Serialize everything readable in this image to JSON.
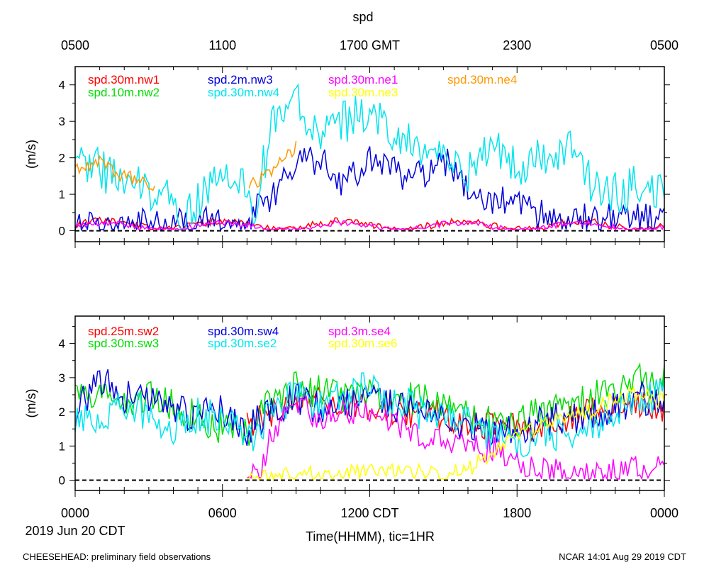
{
  "title": "spd",
  "gmt_ticks": [
    "0500",
    "1100",
    "1700 GMT",
    "2300",
    "0500"
  ],
  "cdt_ticks": [
    "0000",
    "0600",
    "1200 CDT",
    "1800",
    "0000"
  ],
  "date_label": "2019 Jun 20 CDT",
  "xlabel": "Time(HHMM), tic=1HR",
  "footer_left": "CHEESEHEAD: preliminary field observations",
  "footer_right": "NCAR 14:01 Aug 29 2019 CDT",
  "chart_data": [
    {
      "type": "line",
      "panel": "top",
      "ylabel": "(m/s)",
      "ylim": [
        -0.3,
        4.5
      ],
      "yticks": [
        "0",
        "1",
        "2",
        "3",
        "4"
      ],
      "xlim_hours_cdt": [
        0,
        24
      ],
      "zero_line": "dashed",
      "series": [
        {
          "name": "spd.30m.nw1",
          "color": "#ff0000",
          "start": 0,
          "end": 24,
          "mean": 0.15,
          "amp": 0.12,
          "noise": 0.1,
          "seed": 11
        },
        {
          "name": "spd.10m.nw2",
          "color": "#00dd00",
          "start": 0,
          "end": 0,
          "mean": 0,
          "amp": 0,
          "noise": 0,
          "seed": 12
        },
        {
          "name": "spd.2m.nw3",
          "color": "#0000dd",
          "start": 0,
          "end": 24,
          "profile": [
            [
              0,
              0.15
            ],
            [
              5,
              0.2
            ],
            [
              7,
              0.3
            ],
            [
              8,
              1.0
            ],
            [
              9,
              1.8
            ],
            [
              10,
              2.0
            ],
            [
              11,
              1.3
            ],
            [
              12,
              2.0
            ],
            [
              13,
              1.6
            ],
            [
              14,
              1.5
            ],
            [
              15,
              2.0
            ],
            [
              16,
              1.0
            ],
            [
              17,
              0.9
            ],
            [
              18,
              0.8
            ],
            [
              19,
              0.4
            ],
            [
              21,
              0.3
            ],
            [
              24,
              0.3
            ]
          ],
          "noise": 0.45,
          "seed": 13
        },
        {
          "name": "spd.30m.nw4",
          "color": "#00e5ee",
          "start": 0,
          "end": 24,
          "profile": [
            [
              0,
              2.1
            ],
            [
              1,
              1.7
            ],
            [
              2,
              1.3
            ],
            [
              3,
              1.2
            ],
            [
              4,
              0.8
            ],
            [
              4.5,
              0.3
            ],
            [
              5,
              0.8
            ],
            [
              6,
              1.8
            ],
            [
              7,
              1.0
            ],
            [
              7.3,
              0.6
            ],
            [
              8,
              2.8
            ],
            [
              9,
              3.6
            ],
            [
              10,
              2.6
            ],
            [
              11,
              3.0
            ],
            [
              12,
              3.3
            ],
            [
              13,
              2.6
            ],
            [
              14,
              2.2
            ],
            [
              15,
              2.0
            ],
            [
              16,
              1.6
            ],
            [
              17,
              2.2
            ],
            [
              18,
              1.8
            ],
            [
              19,
              2.1
            ],
            [
              20,
              2.3
            ],
            [
              21,
              1.4
            ],
            [
              22,
              1.0
            ],
            [
              23,
              1.3
            ],
            [
              24,
              0.9
            ]
          ],
          "noise": 0.6,
          "seed": 14
        },
        {
          "name": "spd.30m.ne1",
          "color": "#ff00ff",
          "start": 0,
          "end": 24,
          "mean": 0.12,
          "amp": 0.1,
          "noise": 0.08,
          "seed": 15
        },
        {
          "name": "spd.30m.ne3",
          "color": "#ffff00",
          "start": 0,
          "end": 0,
          "mean": 0,
          "amp": 0,
          "noise": 0,
          "seed": 16
        },
        {
          "name": "spd.30m.ne4",
          "color": "#ff9900",
          "start": 0,
          "end": 24,
          "gaps": [
            [
              3.3,
              7.0
            ],
            [
              9.0,
              24
            ]
          ],
          "profile": [
            [
              0,
              1.7
            ],
            [
              1,
              1.9
            ],
            [
              2,
              1.5
            ],
            [
              3,
              1.3
            ],
            [
              7,
              1.2
            ],
            [
              8,
              1.6
            ],
            [
              9,
              2.3
            ]
          ],
          "noise": 0.2,
          "seed": 17
        }
      ]
    },
    {
      "type": "line",
      "panel": "bottom",
      "ylabel": "(m/s)",
      "ylim": [
        -0.3,
        4.8
      ],
      "yticks": [
        "0",
        "1",
        "2",
        "3",
        "4"
      ],
      "xlim_hours_cdt": [
        0,
        24
      ],
      "zero_line": "dashed",
      "series": [
        {
          "name": "spd.25m.sw2",
          "color": "#ff0000",
          "start": 7.0,
          "end": 24,
          "profile": [
            [
              7,
              1.6
            ],
            [
              9,
              2.3
            ],
            [
              11,
              2.2
            ],
            [
              13,
              2.0
            ],
            [
              15,
              1.9
            ],
            [
              17,
              1.6
            ],
            [
              19,
              1.6
            ],
            [
              21,
              2.0
            ],
            [
              23,
              2.2
            ],
            [
              24,
              2.1
            ]
          ],
          "noise": 0.45,
          "seed": 21
        },
        {
          "name": "spd.30m.sw3",
          "color": "#00dd00",
          "start": 0,
          "end": 24,
          "profile": [
            [
              0,
              2.3
            ],
            [
              1,
              2.4
            ],
            [
              2,
              2.2
            ],
            [
              3,
              2.4
            ],
            [
              4,
              2.2
            ],
            [
              5,
              1.8
            ],
            [
              6,
              1.5
            ],
            [
              7,
              1.4
            ],
            [
              8,
              2.3
            ],
            [
              9,
              2.7
            ],
            [
              10,
              2.6
            ],
            [
              11,
              2.4
            ],
            [
              12,
              2.6
            ],
            [
              13,
              2.3
            ],
            [
              14,
              2.4
            ],
            [
              15,
              2.2
            ],
            [
              16,
              2.0
            ],
            [
              17,
              1.6
            ],
            [
              18,
              1.7
            ],
            [
              19,
              2.0
            ],
            [
              20,
              2.1
            ],
            [
              21,
              2.4
            ],
            [
              22,
              2.6
            ],
            [
              23,
              2.9
            ],
            [
              24,
              3.0
            ]
          ],
          "noise": 0.5,
          "seed": 22
        },
        {
          "name": "spd.30m.sw4",
          "color": "#0000dd",
          "start": 0,
          "end": 24,
          "profile": [
            [
              0,
              1.9
            ],
            [
              1,
              3.0
            ],
            [
              2,
              2.4
            ],
            [
              3,
              2.4
            ],
            [
              4,
              2.0
            ],
            [
              5,
              1.9
            ],
            [
              6,
              2.1
            ],
            [
              7,
              1.5
            ],
            [
              8,
              2.0
            ],
            [
              9,
              2.4
            ],
            [
              10,
              2.1
            ],
            [
              11,
              2.2
            ],
            [
              12,
              2.5
            ],
            [
              13,
              2.2
            ],
            [
              14,
              2.0
            ],
            [
              15,
              1.7
            ],
            [
              16,
              1.6
            ],
            [
              17,
              1.4
            ],
            [
              18,
              1.4
            ],
            [
              19,
              1.7
            ],
            [
              20,
              1.8
            ],
            [
              21,
              1.9
            ],
            [
              22,
              2.1
            ],
            [
              23,
              2.4
            ],
            [
              24,
              2.1
            ]
          ],
          "noise": 0.5,
          "seed": 23
        },
        {
          "name": "spd.30m.se2",
          "color": "#00e5ee",
          "start": 0,
          "end": 24,
          "profile": [
            [
              0,
              1.8
            ],
            [
              1,
              1.5
            ],
            [
              2,
              2.2
            ],
            [
              3,
              1.9
            ],
            [
              4,
              1.4
            ],
            [
              5,
              1.9
            ],
            [
              6,
              1.8
            ],
            [
              7,
              1.2
            ],
            [
              8,
              2.0
            ],
            [
              9,
              2.5
            ],
            [
              10,
              2.3
            ],
            [
              11,
              2.4
            ],
            [
              12,
              2.7
            ],
            [
              13,
              2.4
            ],
            [
              14,
              2.0
            ],
            [
              15,
              1.9
            ],
            [
              16,
              1.7
            ],
            [
              17,
              1.3
            ],
            [
              18,
              1.1
            ],
            [
              19,
              1.3
            ],
            [
              20,
              1.4
            ],
            [
              21,
              1.7
            ],
            [
              22,
              1.9
            ],
            [
              23,
              2.3
            ],
            [
              24,
              2.6
            ]
          ],
          "noise": 0.55,
          "seed": 24
        },
        {
          "name": "spd.3m.se4",
          "color": "#ff00ff",
          "start": 7.0,
          "end": 24,
          "profile": [
            [
              7,
              0.3
            ],
            [
              7.5,
              0.3
            ],
            [
              8,
              1.3
            ],
            [
              9,
              2.3
            ],
            [
              10,
              1.8
            ],
            [
              11,
              2.0
            ],
            [
              12,
              2.0
            ],
            [
              13,
              1.7
            ],
            [
              14,
              1.3
            ],
            [
              15,
              1.2
            ],
            [
              16,
              1.0
            ],
            [
              17,
              0.9
            ],
            [
              18,
              0.6
            ],
            [
              19,
              0.3
            ],
            [
              20,
              0.2
            ],
            [
              21,
              0.25
            ],
            [
              22,
              0.3
            ],
            [
              23,
              0.3
            ],
            [
              24,
              0.35
            ]
          ],
          "noise": 0.4,
          "seed": 25
        },
        {
          "name": "spd.30m.se6",
          "color": "#ffff00",
          "start": 7.0,
          "end": 24,
          "profile": [
            [
              7,
              0.05
            ],
            [
              9,
              0.15
            ],
            [
              11,
              0.2
            ],
            [
              13,
              0.3
            ],
            [
              15,
              0.2
            ],
            [
              16,
              0.3
            ],
            [
              17,
              0.8
            ],
            [
              18,
              1.2
            ],
            [
              19,
              1.6
            ],
            [
              20,
              1.8
            ],
            [
              21,
              2.0
            ],
            [
              22,
              2.4
            ],
            [
              23,
              2.5
            ],
            [
              24,
              2.3
            ]
          ],
          "noise": 0.25,
          "seed": 26
        }
      ]
    }
  ]
}
